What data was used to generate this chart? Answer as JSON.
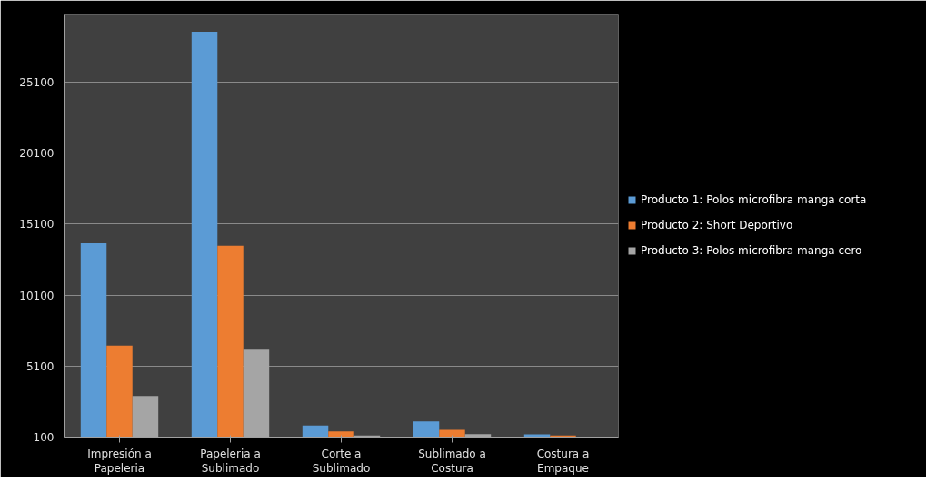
{
  "chart_data": {
    "type": "bar",
    "categories": [
      "Impresión a\nPapeleria",
      "Papeleria a\nSublimado",
      "Corte a\nSublimado",
      "Sublimado a\nCostura",
      "Costura a\nEmpaque"
    ],
    "series": [
      {
        "name": "Producto 1: Polos microfibra manga corta",
        "color": "#5b9bd5",
        "values": [
          13760,
          28650,
          910,
          1210,
          290
        ]
      },
      {
        "name": "Producto 2: Short Deportivo",
        "color": "#ed7d31",
        "values": [
          6550,
          13570,
          500,
          610,
          210
        ]
      },
      {
        "name": "Producto 3: Polos microfibra manga cero",
        "color": "#a5a5a5",
        "values": [
          2990,
          6250,
          210,
          310,
          120
        ]
      }
    ],
    "ylim": [
      100,
      29900
    ],
    "yticks": [
      100,
      5100,
      10100,
      15100,
      20100,
      25100
    ],
    "grid": "y",
    "legend": "right"
  }
}
